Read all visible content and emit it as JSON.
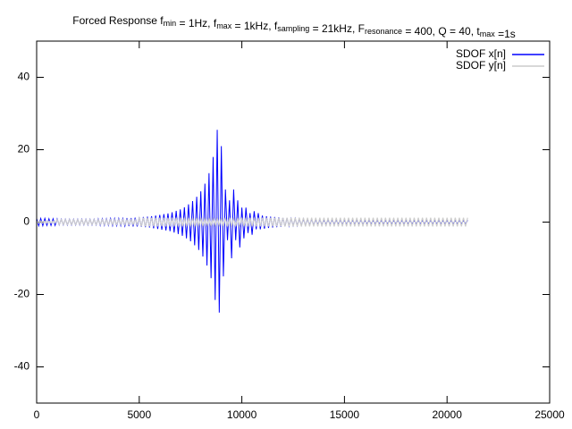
{
  "chart_data": {
    "type": "line",
    "title": [
      {
        "text": "Forced Response f"
      },
      {
        "sub": "min"
      },
      {
        "text": " = 1Hz, f"
      },
      {
        "sub": "max"
      },
      {
        "text": " = 1kHz, f"
      },
      {
        "sub": "sampling"
      },
      {
        "text": " = 21kHz, F"
      },
      {
        "sub": "resonance"
      },
      {
        "text": " = 400, Q = 40, t"
      },
      {
        "sub": "max"
      },
      {
        "text": " =1s"
      }
    ],
    "xlim": [
      0,
      25000
    ],
    "xticks": [
      0,
      5000,
      10000,
      15000,
      20000,
      25000
    ],
    "ylim": [
      -50,
      50
    ],
    "yticks": [
      -40,
      -20,
      0,
      20,
      40
    ],
    "grid": false,
    "legend": "top-right",
    "x": [
      0,
      100,
      200,
      300,
      400,
      500,
      600,
      700,
      800,
      900,
      1000,
      1100,
      1200,
      1300,
      1400,
      1500,
      1600,
      1700,
      1800,
      1900,
      2000,
      2100,
      2200,
      2300,
      2400,
      2500,
      2600,
      2700,
      2800,
      2900,
      3000,
      3100,
      3200,
      3300,
      3400,
      3500,
      3600,
      3700,
      3800,
      3900,
      4000,
      4100,
      4200,
      4300,
      4400,
      4500,
      4600,
      4700,
      4800,
      4900,
      5000,
      5100,
      5200,
      5300,
      5400,
      5500,
      5600,
      5700,
      5800,
      5900,
      6000,
      6100,
      6200,
      6300,
      6400,
      6500,
      6600,
      6700,
      6800,
      6900,
      7000,
      7100,
      7200,
      7300,
      7400,
      7500,
      7600,
      7700,
      7800,
      7900,
      8000,
      8100,
      8200,
      8300,
      8400,
      8500,
      8600,
      8700,
      8800,
      8900,
      9000,
      9100,
      9200,
      9300,
      9400,
      9500,
      9600,
      9700,
      9800,
      9900,
      10000,
      10100,
      10200,
      10300,
      10400,
      10500,
      10600,
      10700,
      10800,
      10900,
      11000,
      11100,
      11200,
      11300,
      11400,
      11500,
      11600,
      11700,
      11800,
      11900,
      12000,
      12100,
      12200,
      12300,
      12400,
      12500,
      12600,
      12700,
      12800,
      12900,
      13000,
      13100,
      13200,
      13300,
      13400,
      13500,
      13600,
      13700,
      13800,
      13900,
      14000,
      14100,
      14200,
      14300,
      14400,
      14500,
      14600,
      14700,
      14800,
      14900,
      15000,
      15100,
      15200,
      15300,
      15400,
      15500,
      15600,
      15700,
      15800,
      15900,
      16000,
      16100,
      16200,
      16300,
      16400,
      16500,
      16600,
      16700,
      16800,
      16900,
      17000,
      17100,
      17200,
      17300,
      17400,
      17500,
      17600,
      17700,
      17800,
      17900,
      18000,
      18100,
      18200,
      18300,
      18400,
      18500,
      18600,
      18700,
      18800,
      18900,
      19000,
      19100,
      19200,
      19300,
      19400,
      19500,
      19600,
      19700,
      19800,
      19900,
      20000,
      20100,
      20200,
      20300,
      20400,
      20500,
      20600,
      20700,
      20800,
      20900,
      21000
    ],
    "series": [
      {
        "name": "SDOF x[n]",
        "color": "#0000ff",
        "values": [
          1,
          -1,
          1,
          -1,
          1,
          -0.9,
          0.9,
          -0.9,
          0.9,
          -0.9,
          0.9,
          -0.8,
          0.8,
          -0.8,
          0.8,
          -0.8,
          0.8,
          -0.8,
          0.8,
          -0.8,
          0.8,
          -0.8,
          0.8,
          -0.8,
          0.8,
          -0.8,
          0.8,
          -0.8,
          0.8,
          -0.8,
          0.9,
          -0.9,
          0.9,
          -0.9,
          0.9,
          -0.9,
          1,
          -1,
          1,
          -1,
          1,
          -1,
          1,
          -1.1,
          1.1,
          -1.1,
          1.1,
          -1.2,
          1.2,
          -1.2,
          1.3,
          -1.3,
          1.4,
          -1.4,
          1.5,
          -1.5,
          1.6,
          -1.7,
          1.8,
          -1.9,
          2,
          -2.1,
          2.2,
          -2.3,
          2.4,
          -2.5,
          2.7,
          -2.9,
          3.1,
          -3.3,
          3.5,
          -3.8,
          4.1,
          -4.5,
          4.9,
          -5.3,
          5.8,
          -6.4,
          7,
          -7.7,
          8.5,
          -9.5,
          10.6,
          -12,
          13.5,
          -15.5,
          18,
          -21.5,
          25.5,
          -25,
          21,
          -15,
          9,
          -5,
          6,
          -10,
          9,
          -5,
          6,
          -7,
          4,
          -4.5,
          4,
          -3,
          2.5,
          -3.5,
          3,
          -2,
          2.5,
          -2,
          1.8,
          -1.8,
          1.6,
          -1.6,
          1.5,
          -1.5,
          1.4,
          -1.4,
          1.3,
          -1.3,
          1.2,
          -1.2,
          1.1,
          -1.1,
          1,
          -1,
          1,
          -1,
          0.9,
          -0.9,
          0.9,
          -0.9,
          0.8,
          -0.8,
          0.8,
          -0.8,
          0.7,
          -0.7,
          0.7,
          -0.7,
          0.6,
          -0.6,
          0.6,
          -0.6,
          0.6,
          -0.6,
          0.6,
          -0.6,
          0.6,
          -0.6,
          0.6,
          -0.6,
          0.6,
          -0.6,
          0.6,
          -0.6,
          0.6,
          -0.6,
          0.6,
          -0.6,
          0.5,
          -0.5,
          0.5,
          -0.5,
          0.5,
          -0.5,
          0.5,
          -0.5,
          0.5,
          -0.5,
          0.5,
          -0.5,
          0.5,
          -0.5,
          0.5,
          -0.5,
          0.5,
          -0.5,
          0.5,
          -0.5,
          0.5,
          -0.5,
          0.5,
          -0.5,
          0.5,
          -0.5,
          0.5,
          -0.5,
          0.5,
          -0.5,
          0.5,
          -0.5,
          0.5,
          -0.5,
          0.5,
          -0.5,
          0.5,
          -0.5,
          0.5,
          -0.5,
          0.5,
          -0.5,
          0.5,
          -0.5,
          0.5,
          -0.5,
          0.5,
          -0.5,
          0.5,
          -0.5,
          0.5
        ]
      },
      {
        "name": "SDOF y[n]",
        "color": "#cccccc",
        "values": [
          0.3,
          -0.3,
          0.3,
          -0.3,
          0.3,
          -0.3,
          0.3,
          -0.3,
          0.3,
          -0.3,
          0.7,
          -0.7,
          0.7,
          -0.7,
          0.7,
          -0.7,
          0.7,
          -0.7,
          0.7,
          -0.7,
          0.7,
          -0.7,
          0.7,
          -0.7,
          0.7,
          -0.7,
          0.7,
          -0.7,
          0.7,
          -0.7,
          0.7,
          -0.7,
          0.7,
          -0.7,
          0.7,
          -0.7,
          0.7,
          -0.7,
          0.7,
          -0.7,
          0.7,
          -0.7,
          0.7,
          -0.7,
          0.7,
          -0.7,
          0.7,
          -0.7,
          0.7,
          -0.7,
          1.2,
          -1.2,
          1.2,
          -1.2,
          1.2,
          -1.2,
          1.2,
          -1.2,
          1.2,
          -1.2,
          1.2,
          -1.2,
          1.2,
          -1.2,
          1.2,
          -1.2,
          1.2,
          -1.2,
          1.2,
          -1.2,
          1.2,
          -1.2,
          1.2,
          -1.2,
          1.2,
          -1.2,
          1.2,
          -1.2,
          1.2,
          -1.2,
          1.2,
          -1.2,
          1.2,
          -1.2,
          1.2,
          -1.2,
          1.2,
          -1.2,
          1.2,
          -1.2,
          1.2,
          -1.2,
          1.2,
          -1.2,
          1.2,
          -1.2,
          1.2,
          -1.2,
          1.2,
          -1.2,
          1.2,
          -1.2,
          1.2,
          -1.2,
          1.2,
          -1.2,
          1.2,
          -1.2,
          1.2,
          -1.2,
          1.2,
          -1.2,
          1.2,
          -1.2,
          1.2,
          -1.2,
          1.2,
          -1.2,
          1.2,
          -1.2,
          1.2,
          -1.2,
          1.2,
          -1.2,
          1.2,
          -1.2,
          1.2,
          -1.2,
          1.2,
          -1.2,
          1.2,
          -1.2,
          1.2,
          -1.2,
          1.2,
          -1.2,
          1.2,
          -1.2,
          1.2,
          -1.2,
          1.2,
          -1.2,
          1.2,
          -1.2,
          1.2,
          -1.2,
          1.2,
          -1.2,
          1.2,
          -1.2,
          1.2,
          -1.2,
          1.2,
          -1.2,
          1.2,
          -1.2,
          1.2,
          -1.2,
          1.2,
          -1.2,
          1.2,
          -1.2,
          1.2,
          -1.2,
          1.2,
          -1.2,
          1.2,
          -1.2,
          1.2,
          -1.2,
          1.2,
          -1.2,
          1.2,
          -1.2,
          1.2,
          -1.2,
          1.2,
          -1.2,
          1.2,
          -1.2,
          1.2,
          -1.2,
          1.2,
          -1.2,
          1.2,
          -1.2,
          1.2,
          -1.2,
          1.2,
          -1.2,
          1.2,
          -1.2,
          1.2,
          -1.2,
          1.2,
          -1.2,
          1.2,
          -1.2,
          1.2,
          -1.2,
          1.2,
          -1.2,
          1.2,
          -1.2,
          1.2,
          -1.2,
          1.2,
          -1.2,
          1.2,
          -1.2,
          1.2
        ]
      }
    ]
  }
}
